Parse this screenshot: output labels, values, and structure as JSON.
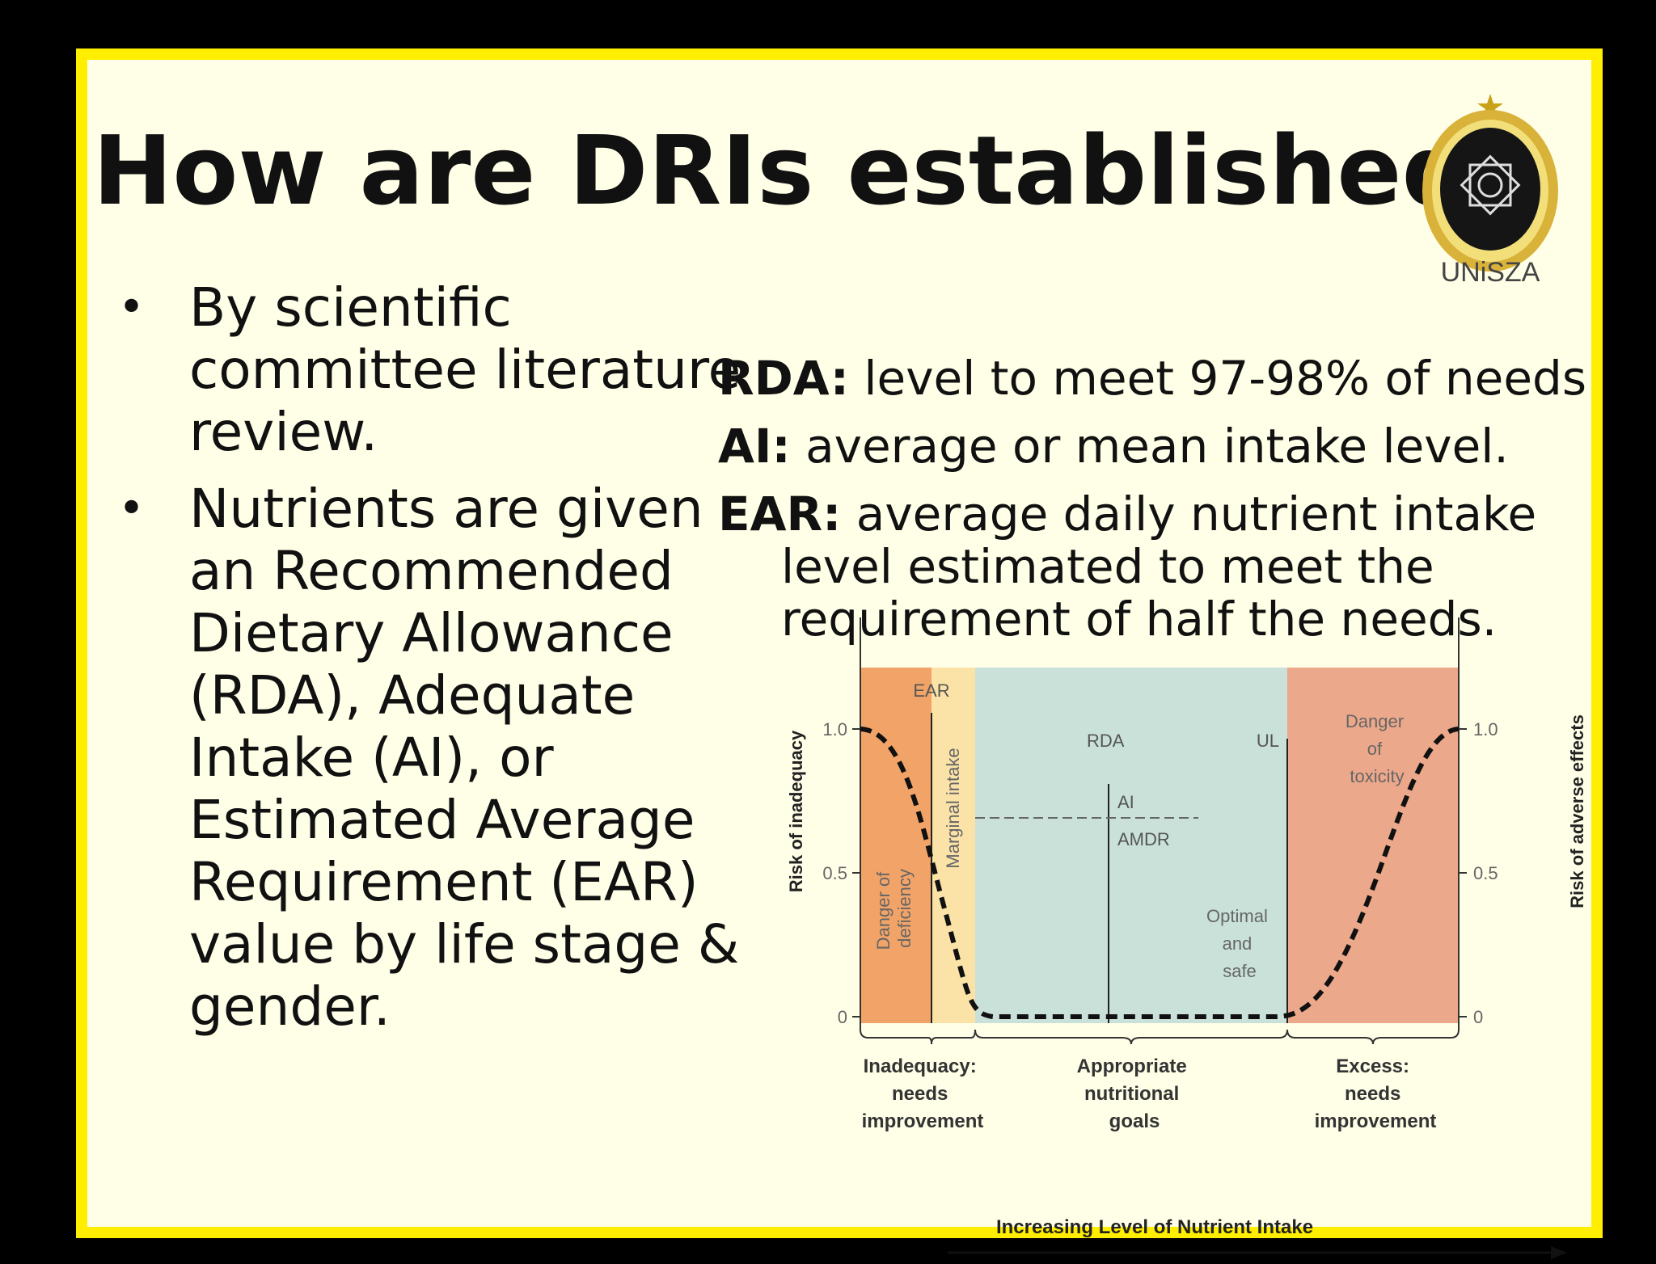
{
  "title": "How are DRIs established?",
  "logo": {
    "text": "UNiSZA"
  },
  "bullets": [
    {
      "text": "By scientific committee literature review."
    },
    {
      "text": "Nutrients are given an Recommended Dietary Allowance (RDA), Adequate Intake (AI), or Estimated Average Requirement (EAR) value by life stage & gender."
    }
  ],
  "definitions": [
    {
      "term": "RDA:",
      "text": " level to meet 97-98% of needs"
    },
    {
      "term": "AI:",
      "text": " average or mean intake level."
    },
    {
      "term": "EAR:",
      "text": " average daily nutrient intake level estimated to meet the requirement of half the needs."
    }
  ],
  "diagram": {
    "left_axis_label": "Risk of inadequacy",
    "right_axis_label": "Risk of adverse effects",
    "ticks": [
      "1.0",
      "0.5",
      "0"
    ],
    "markers": {
      "ear": "EAR",
      "rda": "RDA",
      "ai": "AI",
      "amdr": "AMDR",
      "ul": "UL"
    },
    "zones": {
      "deficiency": [
        "Danger of",
        "deficiency"
      ],
      "marginal": "Marginal intake",
      "optimal": [
        "Optimal",
        "and",
        "safe"
      ],
      "toxicity": [
        "Danger",
        "of",
        "toxicity"
      ]
    },
    "brackets": {
      "inadequacy": [
        "Inadequacy:",
        "needs",
        "improvement"
      ],
      "appropriate": [
        "Appropriate",
        "nutritional",
        "goals"
      ],
      "excess": [
        "Excess:",
        "needs",
        "improvement"
      ]
    },
    "x_axis_label": "Increasing Level of Nutrient Intake",
    "colors": {
      "deficiency": "#f2a468",
      "marginal": "#fbe3a8",
      "optimal": "#c9e1d9",
      "toxicity": "#eba88a"
    }
  }
}
